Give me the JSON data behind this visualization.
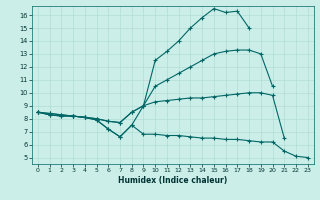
{
  "title": "",
  "xlabel": "Humidex (Indice chaleur)",
  "bg_color": "#cceee8",
  "grid_color": "#b0ddd5",
  "line_color": "#006666",
  "xlim": [
    -0.5,
    23.5
  ],
  "ylim": [
    4.5,
    16.7
  ],
  "xticks": [
    0,
    1,
    2,
    3,
    4,
    5,
    6,
    7,
    8,
    9,
    10,
    11,
    12,
    13,
    14,
    15,
    16,
    17,
    18,
    19,
    20,
    21,
    22,
    23
  ],
  "yticks": [
    5,
    6,
    7,
    8,
    9,
    10,
    11,
    12,
    13,
    14,
    15,
    16
  ],
  "line1_x": [
    0,
    1,
    2,
    3,
    4,
    5,
    6,
    7,
    8,
    9,
    10,
    11,
    12,
    13,
    14,
    15,
    16,
    17,
    18
  ],
  "line1_y": [
    8.5,
    8.3,
    8.2,
    8.2,
    8.1,
    7.9,
    7.2,
    6.6,
    7.5,
    9.0,
    12.5,
    13.2,
    14.0,
    15.0,
    15.8,
    16.5,
    16.2,
    16.3,
    15.0
  ],
  "line2_x": [
    0,
    1,
    2,
    3,
    4,
    5,
    6,
    7,
    8,
    9,
    10,
    11,
    12,
    13,
    14,
    15,
    16,
    17,
    18,
    19,
    20,
    21
  ],
  "line2_y": [
    8.5,
    8.4,
    8.3,
    8.2,
    8.1,
    8.0,
    7.8,
    7.7,
    8.5,
    9.0,
    9.3,
    9.4,
    9.5,
    9.6,
    9.6,
    9.7,
    9.8,
    9.9,
    10.0,
    10.0,
    9.8,
    6.5
  ],
  "line3_x": [
    0,
    1,
    2,
    3,
    4,
    5,
    6,
    7,
    8,
    9,
    10,
    11,
    12,
    13,
    14,
    15,
    16,
    17,
    18,
    19,
    20
  ],
  "line3_y": [
    8.5,
    8.4,
    8.3,
    8.2,
    8.1,
    8.0,
    7.8,
    7.7,
    8.5,
    9.0,
    10.5,
    11.0,
    11.5,
    12.0,
    12.5,
    13.0,
    13.2,
    13.3,
    13.3,
    13.0,
    10.5
  ],
  "line4_x": [
    0,
    1,
    2,
    3,
    4,
    5,
    6,
    7,
    8,
    9,
    10,
    11,
    12,
    13,
    14,
    15,
    16,
    17,
    18,
    19,
    20,
    21,
    22,
    23
  ],
  "line4_y": [
    8.5,
    8.3,
    8.2,
    8.2,
    8.1,
    7.9,
    7.2,
    6.6,
    7.5,
    6.8,
    6.8,
    6.7,
    6.7,
    6.6,
    6.5,
    6.5,
    6.4,
    6.4,
    6.3,
    6.2,
    6.2,
    5.5,
    5.1,
    5.0
  ]
}
